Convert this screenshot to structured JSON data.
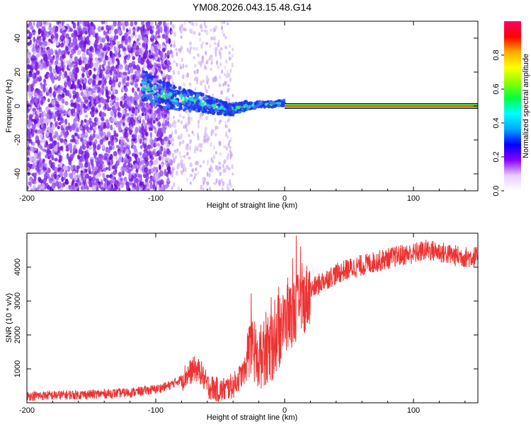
{
  "title": "YM08.2026.043.15.48.G14",
  "chart_data": [
    {
      "type": "heatmap",
      "xlabel": "Height of straight line (km)",
      "ylabel": "Frequency (Hz)",
      "xlim": [
        -200,
        150
      ],
      "ylim": [
        -50,
        50
      ],
      "xticks": [
        -200,
        -100,
        0,
        100
      ],
      "yticks": [
        -40,
        -20,
        0,
        20,
        40
      ],
      "colorbar": {
        "label": "Normalized spectral amplitude",
        "range": [
          0,
          1
        ],
        "ticks": [
          0.0,
          0.2,
          0.4,
          0.6,
          0.8
        ],
        "colors": [
          "#ffffff",
          "#e6ccff",
          "#8800ff",
          "#0000ff",
          "#00aaff",
          "#00ffff",
          "#00ff44",
          "#88ff00",
          "#ffff00",
          "#ffaa00",
          "#ff0000",
          "#ff0066"
        ]
      },
      "features": {
        "noise_region_x": [
          -200,
          -88
        ],
        "sparse_region_x": [
          -88,
          -40
        ],
        "converging_track": [
          [
            -110,
            12
          ],
          [
            -95,
            7
          ],
          [
            -80,
            4
          ],
          [
            -65,
            2
          ],
          [
            -50,
            -1
          ],
          [
            -40,
            -2
          ],
          [
            -30,
            0
          ],
          [
            -20,
            1
          ],
          [
            -10,
            1
          ],
          [
            0,
            2
          ]
        ],
        "stable_track_x": [
          0,
          150
        ],
        "stable_track_frequency": 0
      }
    },
    {
      "type": "line",
      "xlabel": "Height of straight line (km)",
      "ylabel": "SNR (10 * v/v)",
      "xlim": [
        -200,
        150
      ],
      "ylim": [
        0,
        5000
      ],
      "xticks": [
        -200,
        -100,
        0,
        100
      ],
      "yticks": [
        1000,
        2000,
        3000,
        4000
      ],
      "series_color": "#ee3333",
      "envelope": [
        [
          -200,
          200
        ],
        [
          -150,
          250
        ],
        [
          -120,
          300
        ],
        [
          -100,
          400
        ],
        [
          -90,
          500
        ],
        [
          -80,
          700
        ],
        [
          -70,
          1000
        ],
        [
          -65,
          900
        ],
        [
          -60,
          500
        ],
        [
          -50,
          350
        ],
        [
          -40,
          500
        ],
        [
          -30,
          1000
        ],
        [
          -25,
          1500
        ],
        [
          -20,
          1300
        ],
        [
          -15,
          1500
        ],
        [
          -10,
          1600
        ],
        [
          -5,
          1900
        ],
        [
          0,
          2400
        ],
        [
          5,
          2600
        ],
        [
          10,
          2800
        ],
        [
          15,
          3000
        ],
        [
          20,
          3300
        ],
        [
          25,
          3450
        ],
        [
          30,
          3600
        ],
        [
          40,
          3800
        ],
        [
          50,
          3950
        ],
        [
          60,
          4050
        ],
        [
          70,
          4150
        ],
        [
          80,
          4250
        ],
        [
          90,
          4350
        ],
        [
          100,
          4400
        ],
        [
          110,
          4500
        ],
        [
          120,
          4450
        ],
        [
          130,
          4350
        ],
        [
          140,
          4300
        ],
        [
          150,
          4300
        ]
      ]
    }
  ]
}
